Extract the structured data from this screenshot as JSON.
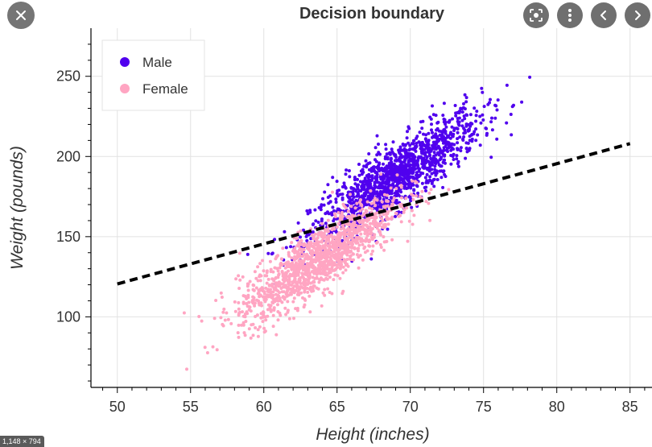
{
  "overlay": {
    "image_dimensions": "1,148 × 794",
    "close_icon": "close-icon",
    "lens_icon": "lens-icon",
    "more_icon": "more-vertical-icon",
    "prev_icon": "chevron-left-icon",
    "next_icon": "chevron-right-icon"
  },
  "chart_data": {
    "type": "scatter",
    "title": "Decision boundary",
    "xlabel": "Height (inches)",
    "ylabel": "Weight (pounds)",
    "xlim": [
      48.2,
      86.5
    ],
    "ylim": [
      56,
      280
    ],
    "xticks": [
      50,
      55,
      60,
      65,
      70,
      75,
      80,
      85
    ],
    "yticks": [
      100,
      150,
      200,
      250
    ],
    "grid": true,
    "legend_position": "top-left",
    "series": [
      {
        "name": "Male",
        "color": "#5000ee",
        "distribution": {
          "mean_x": 69.0,
          "mean_y": 187,
          "std_x": 2.9,
          "std_y": 20,
          "corr": 0.86,
          "x_range": [
            58.5,
            79
          ]
        }
      },
      {
        "name": "Female",
        "color": "#ffa5c2",
        "distribution": {
          "mean_x": 63.7,
          "mean_y": 136,
          "std_x": 2.7,
          "std_y": 19,
          "corr": 0.85,
          "x_range": [
            54.2,
            73.5
          ]
        }
      }
    ],
    "decision_boundary": {
      "style": "dashed",
      "color": "#000000",
      "points": [
        [
          50,
          120.5
        ],
        [
          85,
          208
        ]
      ]
    }
  }
}
